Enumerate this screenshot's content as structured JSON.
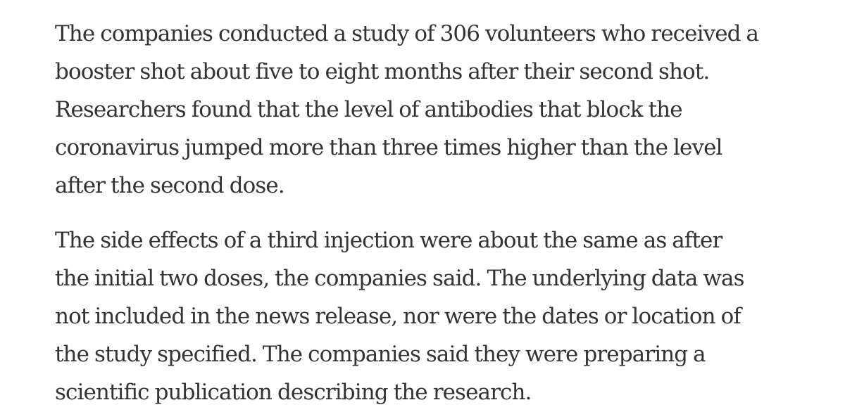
{
  "article": {
    "paragraphs": [
      {
        "lines": [
          "The companies conducted a study of 306 volunteers who received a",
          "booster shot about five to eight months after their second shot.",
          "Researchers found that the level of antibodies that block the",
          "coronavirus jumped more than three times higher than the level",
          "after the second dose."
        ]
      },
      {
        "lines": [
          "The side effects of a third injection were about the same as after",
          "the initial two doses, the companies said. The underlying data was",
          "not included in the news release, nor were the dates or location of",
          "the study specified. The companies said they were preparing a",
          "scientific publication describing the research."
        ]
      }
    ]
  }
}
